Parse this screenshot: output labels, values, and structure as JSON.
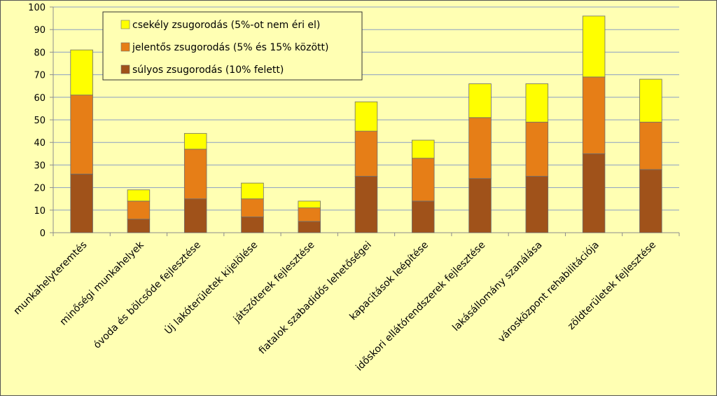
{
  "chart_data": {
    "type": "bar",
    "stacked": true,
    "categories": [
      "munkahelyteremtés",
      "minőségi munkahelyek",
      "óvoda és bölcsőde fejlesztése",
      "Új lakóterületek kijelölése",
      "játszóterek fejlesztése",
      "fiatalok szabadidős lehetőségei",
      "kapacitások leépítése",
      "időskori ellátórendszerek fejlesztése",
      "lakásállomány szanálása",
      "városközpont rehabilitációja",
      "zöldterületek fejlesztése"
    ],
    "series": [
      {
        "name": "súlyos zsugorodás (10% felett)",
        "color": "#a0521a",
        "values": [
          26,
          6,
          15,
          7,
          5,
          25,
          14,
          24,
          25,
          35,
          28
        ]
      },
      {
        "name": "jelentős zsugorodás (5% és 15% között)",
        "color": "#e67e17",
        "values": [
          35,
          8,
          22,
          8,
          6,
          20,
          19,
          27,
          24,
          34,
          21
        ]
      },
      {
        "name": "csekély zsugorodás (5%-ot nem éri el)",
        "color": "#ffff00",
        "values": [
          20,
          5,
          7,
          7,
          3,
          13,
          8,
          15,
          17,
          27,
          19
        ]
      }
    ],
    "ylim": [
      0,
      100
    ],
    "yticks": [
      0,
      10,
      20,
      30,
      40,
      50,
      60,
      70,
      80,
      90,
      100
    ],
    "grid": true,
    "legend_position": "top-left",
    "colors": {
      "background": "#ffffb3",
      "grid": "#8c9fc4",
      "axis": "#8c8c8c",
      "bar_border": "#6e6e6e"
    }
  }
}
